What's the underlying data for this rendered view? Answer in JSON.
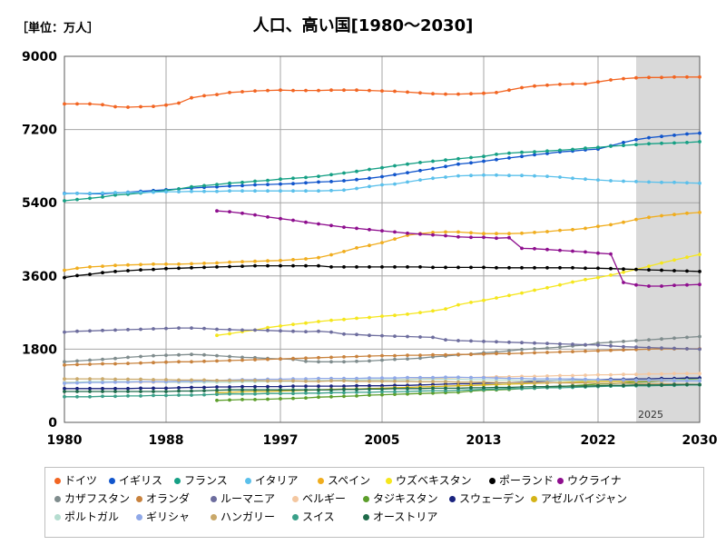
{
  "unit_label": "［単位：万人］",
  "chart_data": {
    "type": "line",
    "title": "人口、高い国[1980〜2030]",
    "xlabel": "",
    "ylabel": "",
    "xlim": [
      1980,
      2030
    ],
    "ylim": [
      0,
      9000
    ],
    "x_ticks": [
      1980,
      1988,
      1997,
      2005,
      2013,
      2022,
      2030
    ],
    "y_ticks": [
      0,
      1800,
      3600,
      5400,
      7200,
      9000
    ],
    "forecast_start": 2025,
    "forecast_label": "2025",
    "shade_color": "#d9d9d9",
    "series": [
      {
        "name": "ドイツ",
        "color": "#f26522",
        "start": 1980,
        "values": [
          7830,
          7830,
          7830,
          7810,
          7760,
          7750,
          7760,
          7770,
          7800,
          7850,
          7980,
          8030,
          8060,
          8110,
          8130,
          8150,
          8160,
          8170,
          8160,
          8160,
          8160,
          8170,
          8170,
          8170,
          8160,
          8150,
          8140,
          8120,
          8100,
          8080,
          8070,
          8070,
          8080,
          8090,
          8110,
          8170,
          8230,
          8270,
          8290,
          8310,
          8320,
          8320,
          8370,
          8420,
          8450,
          8470,
          8480,
          8480,
          8490,
          8490,
          8490
        ]
      },
      {
        "name": "イギリス",
        "color": "#1155cc",
        "start": 1980,
        "values": [
          5630,
          5630,
          5620,
          5620,
          5640,
          5660,
          5680,
          5700,
          5720,
          5740,
          5760,
          5780,
          5790,
          5810,
          5820,
          5840,
          5850,
          5860,
          5870,
          5890,
          5910,
          5920,
          5940,
          5970,
          6000,
          6040,
          6090,
          6140,
          6190,
          6240,
          6290,
          6350,
          6380,
          6420,
          6460,
          6500,
          6540,
          6580,
          6610,
          6650,
          6670,
          6700,
          6720,
          6800,
          6880,
          6950,
          7000,
          7030,
          7060,
          7090,
          7110
        ]
      },
      {
        "name": "フランス",
        "color": "#16a085",
        "start": 1980,
        "values": [
          5450,
          5480,
          5510,
          5540,
          5590,
          5610,
          5640,
          5670,
          5700,
          5740,
          5790,
          5820,
          5850,
          5880,
          5900,
          5930,
          5950,
          5980,
          6000,
          6020,
          6050,
          6090,
          6130,
          6170,
          6220,
          6260,
          6310,
          6350,
          6390,
          6420,
          6450,
          6480,
          6510,
          6540,
          6590,
          6620,
          6640,
          6650,
          6670,
          6690,
          6710,
          6740,
          6760,
          6790,
          6810,
          6830,
          6850,
          6860,
          6870,
          6880,
          6900
        ]
      },
      {
        "name": "イタリア",
        "color": "#5bc0eb",
        "start": 1980,
        "values": [
          5620,
          5630,
          5630,
          5640,
          5650,
          5650,
          5660,
          5660,
          5670,
          5670,
          5680,
          5680,
          5680,
          5690,
          5690,
          5690,
          5690,
          5690,
          5690,
          5690,
          5690,
          5700,
          5710,
          5750,
          5800,
          5840,
          5860,
          5910,
          5960,
          6000,
          6030,
          6060,
          6070,
          6080,
          6080,
          6070,
          6070,
          6060,
          6050,
          6030,
          6000,
          5980,
          5960,
          5940,
          5930,
          5920,
          5910,
          5900,
          5900,
          5890,
          5880
        ]
      },
      {
        "name": "スペイン",
        "color": "#f0ad1e",
        "start": 1980,
        "values": [
          3740,
          3790,
          3820,
          3840,
          3860,
          3870,
          3880,
          3890,
          3890,
          3890,
          3900,
          3910,
          3920,
          3940,
          3950,
          3960,
          3970,
          3980,
          4000,
          4020,
          4050,
          4120,
          4200,
          4290,
          4350,
          4420,
          4510,
          4600,
          4640,
          4670,
          4680,
          4680,
          4660,
          4640,
          4640,
          4640,
          4650,
          4670,
          4690,
          4720,
          4740,
          4770,
          4820,
          4860,
          4920,
          4990,
          5040,
          5080,
          5110,
          5140,
          5160
        ]
      },
      {
        "name": "ウズベキスタン",
        "color": "#f5e61d",
        "start": 1992,
        "values": [
          2140,
          2180,
          2230,
          2270,
          2330,
          2370,
          2410,
          2440,
          2480,
          2510,
          2530,
          2560,
          2580,
          2610,
          2630,
          2660,
          2700,
          2740,
          2790,
          2890,
          2950,
          3000,
          3060,
          3120,
          3180,
          3250,
          3310,
          3380,
          3450,
          3510,
          3560,
          3620,
          3690,
          3760,
          3840,
          3920,
          3990,
          4060,
          4130
        ]
      },
      {
        "name": "ポーランド",
        "color": "#000000",
        "start": 1980,
        "values": [
          3560,
          3610,
          3640,
          3680,
          3710,
          3730,
          3750,
          3760,
          3780,
          3790,
          3800,
          3810,
          3820,
          3830,
          3840,
          3850,
          3850,
          3850,
          3850,
          3850,
          3850,
          3820,
          3820,
          3820,
          3820,
          3820,
          3820,
          3820,
          3820,
          3810,
          3810,
          3810,
          3810,
          3810,
          3800,
          3800,
          3800,
          3800,
          3800,
          3800,
          3800,
          3790,
          3790,
          3780,
          3770,
          3760,
          3750,
          3740,
          3730,
          3720,
          3710
        ]
      },
      {
        "name": "ウクライナ",
        "color": "#8e0e8e",
        "start": 1992,
        "values": [
          5200,
          5180,
          5140,
          5100,
          5050,
          5010,
          4970,
          4920,
          4880,
          4840,
          4800,
          4770,
          4740,
          4710,
          4680,
          4650,
          4630,
          4610,
          4590,
          4560,
          4550,
          4550,
          4530,
          4540,
          4280,
          4270,
          4250,
          4230,
          4210,
          4190,
          4160,
          4140,
          3440,
          3380,
          3350,
          3350,
          3370,
          3380,
          3390
        ]
      },
      {
        "name": "カザフスタン",
        "color": "#7f8c8d",
        "start": 1980,
        "values": [
          1490,
          1510,
          1530,
          1550,
          1570,
          1600,
          1620,
          1640,
          1650,
          1660,
          1670,
          1660,
          1640,
          1620,
          1600,
          1590,
          1570,
          1560,
          1550,
          1500,
          1490,
          1490,
          1490,
          1500,
          1510,
          1530,
          1550,
          1560,
          1580,
          1610,
          1630,
          1660,
          1680,
          1710,
          1730,
          1760,
          1790,
          1810,
          1830,
          1850,
          1880,
          1900,
          1950,
          1970,
          1990,
          2010,
          2030,
          2050,
          2070,
          2090,
          2110
        ]
      },
      {
        "name": "オランダ",
        "color": "#c8823d",
        "start": 1980,
        "values": [
          1410,
          1420,
          1430,
          1440,
          1440,
          1450,
          1460,
          1470,
          1480,
          1490,
          1490,
          1500,
          1510,
          1520,
          1530,
          1540,
          1550,
          1560,
          1570,
          1580,
          1590,
          1600,
          1610,
          1620,
          1630,
          1640,
          1640,
          1650,
          1650,
          1660,
          1660,
          1670,
          1670,
          1680,
          1690,
          1690,
          1700,
          1710,
          1720,
          1730,
          1740,
          1750,
          1760,
          1770,
          1780,
          1790,
          1800,
          1810,
          1810,
          1810,
          1810
        ]
      },
      {
        "name": "ルーマニア",
        "color": "#6d6d9e",
        "start": 1980,
        "values": [
          2220,
          2240,
          2250,
          2260,
          2270,
          2280,
          2290,
          2300,
          2310,
          2320,
          2320,
          2310,
          2290,
          2280,
          2270,
          2270,
          2260,
          2250,
          2240,
          2230,
          2240,
          2220,
          2170,
          2160,
          2140,
          2130,
          2120,
          2110,
          2100,
          2090,
          2030,
          2010,
          2000,
          1990,
          1980,
          1970,
          1960,
          1950,
          1940,
          1930,
          1920,
          1910,
          1900,
          1880,
          1860,
          1850,
          1840,
          1830,
          1820,
          1810,
          1800
        ]
      },
      {
        "name": "ベルギー",
        "color": "#f4c7a0",
        "start": 1980,
        "values": [
          990,
          990,
          990,
          990,
          990,
          990,
          990,
          990,
          990,
          990,
          990,
          1000,
          1000,
          1010,
          1010,
          1010,
          1010,
          1010,
          1020,
          1020,
          1020,
          1020,
          1030,
          1030,
          1040,
          1040,
          1050,
          1060,
          1070,
          1080,
          1090,
          1100,
          1100,
          1110,
          1120,
          1120,
          1130,
          1130,
          1140,
          1150,
          1150,
          1160,
          1170,
          1170,
          1180,
          1180,
          1190,
          1190,
          1200,
          1200,
          1200
        ]
      },
      {
        "name": "タジキスタン",
        "color": "#5c9e2b",
        "start": 1992,
        "values": [
          540,
          550,
          560,
          560,
          570,
          580,
          590,
          600,
          620,
          630,
          640,
          650,
          670,
          680,
          690,
          700,
          710,
          720,
          730,
          740,
          770,
          790,
          800,
          810,
          830,
          840,
          860,
          880,
          900,
          920,
          940,
          950,
          970,
          990,
          1000,
          1020,
          1040,
          1060,
          1080
        ]
      },
      {
        "name": "スウェーデン",
        "color": "#1a237e",
        "start": 1980,
        "values": [
          830,
          830,
          830,
          830,
          830,
          830,
          840,
          840,
          840,
          850,
          860,
          860,
          870,
          870,
          880,
          880,
          880,
          880,
          890,
          890,
          890,
          890,
          890,
          900,
          900,
          900,
          910,
          910,
          920,
          930,
          940,
          950,
          950,
          960,
          970,
          980,
          990,
          1010,
          1020,
          1030,
          1040,
          1040,
          1050,
          1060,
          1060,
          1070,
          1070,
          1080,
          1080,
          1090,
          1090
        ]
      },
      {
        "name": "アゼルバイジャン",
        "color": "#d4b317",
        "start": 1992,
        "values": [
          730,
          740,
          750,
          760,
          760,
          770,
          780,
          790,
          800,
          810,
          820,
          820,
          830,
          840,
          850,
          860,
          870,
          880,
          890,
          900,
          910,
          920,
          930,
          940,
          950,
          960,
          970,
          980,
          990,
          1000,
          1010,
          1010,
          1010,
          1010,
          1020,
          1020,
          1030,
          1030,
          1030
        ]
      },
      {
        "name": "ポルトガル",
        "color": "#b5ddd0",
        "start": 1980,
        "values": [
          980,
          990,
          1000,
          1000,
          1000,
          1000,
          1000,
          1000,
          990,
          990,
          990,
          990,
          990,
          990,
          1000,
          1000,
          1010,
          1010,
          1010,
          1020,
          1030,
          1030,
          1040,
          1040,
          1050,
          1050,
          1050,
          1050,
          1060,
          1060,
          1060,
          1060,
          1050,
          1050,
          1040,
          1040,
          1030,
          1030,
          1030,
          1030,
          1030,
          1030,
          1040,
          1040,
          1040,
          1040,
          1040,
          1040,
          1040,
          1040,
          1040
        ]
      },
      {
        "name": "ギリシャ",
        "color": "#8fa8e8",
        "start": 1980,
        "values": [
          960,
          970,
          980,
          980,
          990,
          990,
          1000,
          1000,
          1000,
          1010,
          1010,
          1020,
          1030,
          1040,
          1050,
          1050,
          1060,
          1060,
          1070,
          1070,
          1080,
          1080,
          1080,
          1080,
          1090,
          1090,
          1090,
          1100,
          1100,
          1100,
          1110,
          1110,
          1100,
          1100,
          1090,
          1080,
          1080,
          1070,
          1070,
          1070,
          1070,
          1060,
          1050,
          1040,
          1040,
          1030,
          1030,
          1030,
          1020,
          1020,
          1020
        ]
      },
      {
        "name": "ハンガリー",
        "color": "#c9a86a",
        "start": 1980,
        "values": [
          1070,
          1070,
          1070,
          1070,
          1060,
          1060,
          1060,
          1050,
          1050,
          1040,
          1040,
          1040,
          1030,
          1030,
          1030,
          1030,
          1020,
          1020,
          1020,
          1010,
          1010,
          1020,
          1020,
          1010,
          1010,
          1010,
          1010,
          1010,
          1000,
          1000,
          1000,
          990,
          990,
          990,
          980,
          980,
          980,
          980,
          980,
          970,
          970,
          970,
          960,
          960,
          960,
          950,
          950,
          950,
          940,
          940,
          930
        ]
      },
      {
        "name": "スイス",
        "color": "#3aa089",
        "start": 1980,
        "values": [
          630,
          630,
          630,
          640,
          640,
          650,
          650,
          660,
          660,
          670,
          670,
          680,
          690,
          700,
          700,
          700,
          710,
          710,
          710,
          720,
          720,
          730,
          730,
          740,
          740,
          750,
          750,
          760,
          770,
          780,
          780,
          790,
          800,
          810,
          820,
          830,
          830,
          840,
          850,
          850,
          860,
          870,
          880,
          890,
          890,
          900,
          900,
          910,
          910,
          920,
          920
        ]
      },
      {
        "name": "オーストリア",
        "color": "#1e6b4a",
        "start": 1980,
        "values": [
          760,
          760,
          760,
          760,
          760,
          760,
          760,
          760,
          760,
          770,
          770,
          780,
          790,
          800,
          800,
          800,
          800,
          800,
          800,
          800,
          800,
          800,
          810,
          810,
          820,
          820,
          830,
          830,
          830,
          840,
          840,
          840,
          850,
          850,
          860,
          860,
          870,
          880,
          880,
          890,
          890,
          890,
          900,
          910,
          910,
          920,
          920,
          920,
          930,
          930,
          930
        ]
      }
    ]
  }
}
